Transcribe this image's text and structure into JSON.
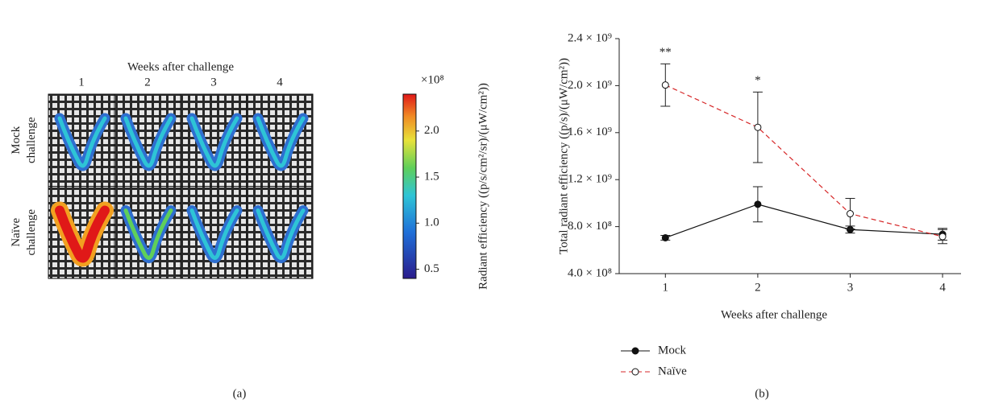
{
  "chart_data": [
    {
      "type": "image-grid",
      "xlabel": "Weeks after challenge",
      "columns": [
        "1",
        "2",
        "3",
        "4"
      ],
      "rows": [
        "Mock challenge",
        "Naïve challenge"
      ],
      "colorbar": {
        "label": "Radiant efficiency ((p/s/cm²/sr)/(μW/cm²))",
        "multiplier": "×10⁸",
        "lim": [
          0.4,
          2.4
        ],
        "ticks": [
          {
            "value": 0.5,
            "label": "0.5"
          },
          {
            "value": 1.0,
            "label": "1.0"
          },
          {
            "value": 1.5,
            "label": "1.5"
          },
          {
            "value": 2.0,
            "label": "2.0"
          }
        ]
      },
      "caption": "(a)"
    },
    {
      "type": "line",
      "xlabel": "Weeks after challenge",
      "ylabel": "Total radiant efficiency ((p/s)/(μW/cm²))",
      "x": [
        1,
        2,
        3,
        4
      ],
      "xlim": [
        0.5,
        4.2
      ],
      "xticks": [
        1,
        2,
        3,
        4
      ],
      "ylim": [
        400000000,
        2400000000
      ],
      "yticks": [
        {
          "value": 400000000,
          "label": "4.0 × 10⁸"
        },
        {
          "value": 800000000,
          "label": "8.0 × 10⁸"
        },
        {
          "value": 1200000000,
          "label": "1.2 × 10⁹"
        },
        {
          "value": 1600000000,
          "label": "1.6 × 10⁹"
        },
        {
          "value": 2000000000,
          "label": "2.0 × 10⁹"
        },
        {
          "value": 2400000000,
          "label": "2.4 × 10⁹"
        }
      ],
      "series": [
        {
          "name": "Mock",
          "color": "#111111",
          "dash": false,
          "marker": "filled",
          "values": [
            705000000,
            990000000,
            775000000,
            735000000
          ],
          "errors": [
            20000000,
            150000000,
            30000000,
            50000000
          ]
        },
        {
          "name": "Naïve",
          "color": "#d62728",
          "dash": true,
          "marker": "open",
          "values": [
            2005000000,
            1645000000,
            910000000,
            715000000
          ],
          "errors": [
            180000000,
            300000000,
            130000000,
            60000000
          ]
        }
      ],
      "annotations": [
        {
          "text": "**",
          "x": 1,
          "series": 1
        },
        {
          "text": "*",
          "x": 2,
          "series": 1
        }
      ],
      "legend": "below",
      "caption": "(b)"
    }
  ]
}
